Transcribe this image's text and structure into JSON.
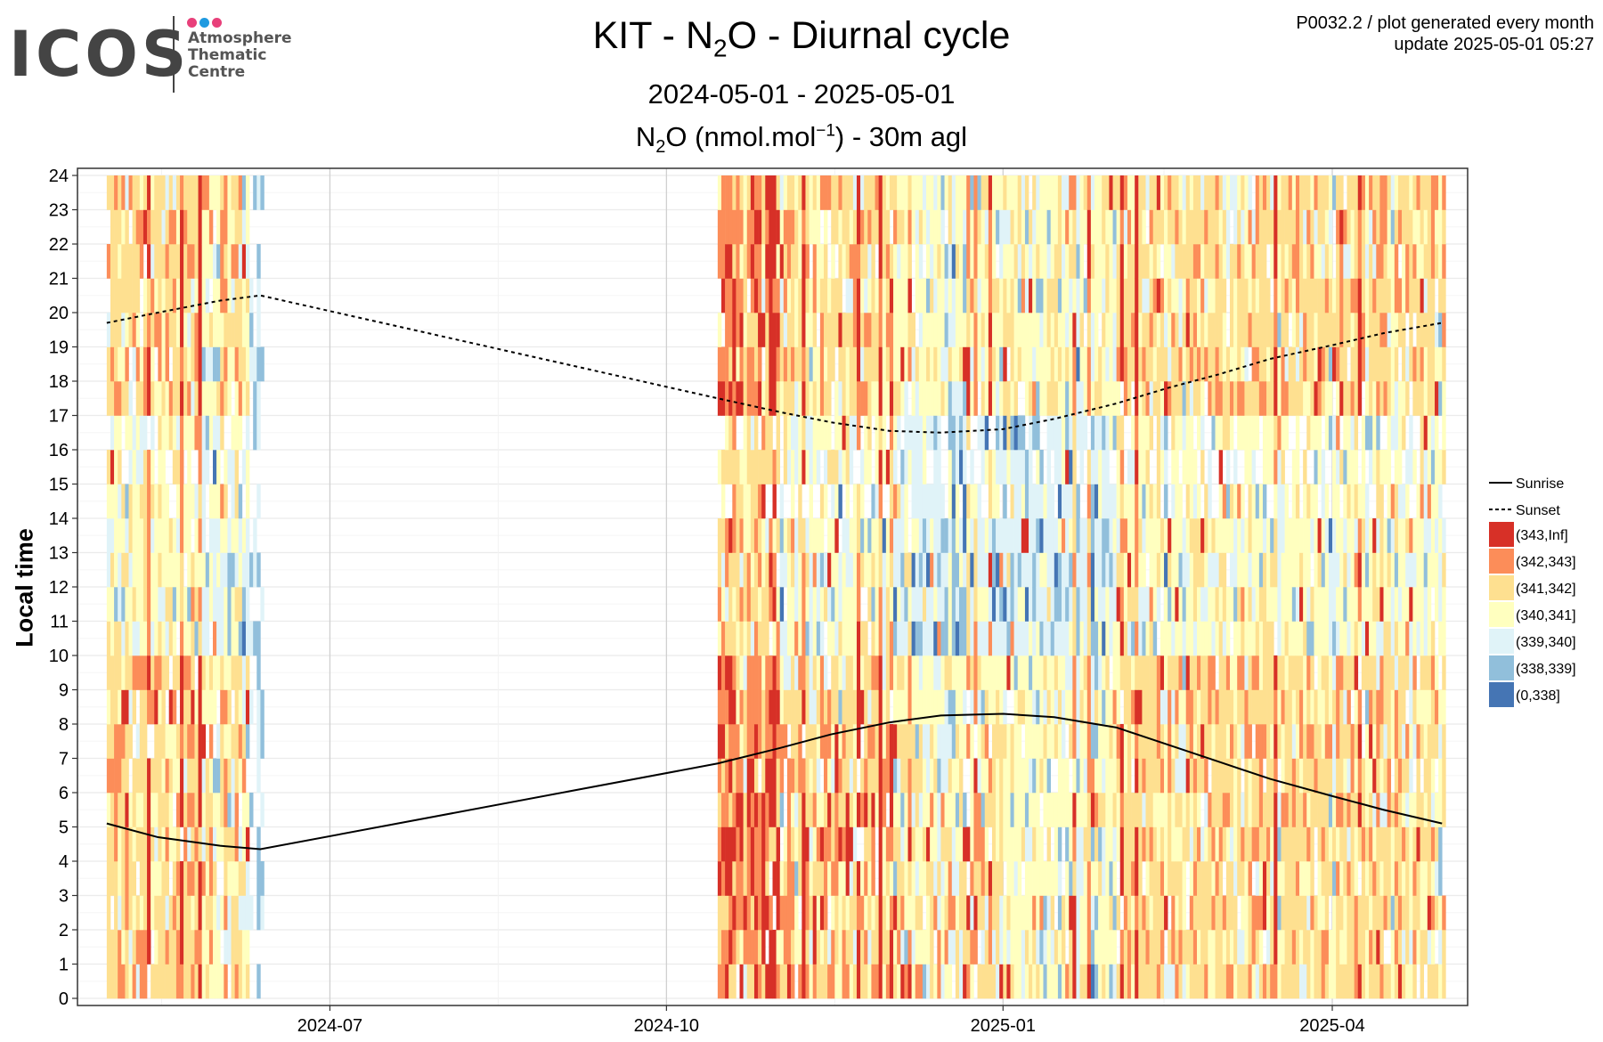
{
  "logo": {
    "wordmark": "ICOS",
    "lines": [
      "Atmosphere",
      "Thematic",
      "Centre"
    ],
    "dot_colors": [
      "#e8407a",
      "#1f9ae0",
      "#e8407a"
    ]
  },
  "header": {
    "title_prefix": "KIT - N",
    "title_sub": "2",
    "title_suffix": "O - Diurnal cycle",
    "date_range": "2024-05-01 - 2025-05-01",
    "var_prefix": "N",
    "var_sub": "2",
    "var_mid": "O (nmol.mol",
    "var_sup": "−1",
    "var_suffix": ") - 30m agl",
    "meta_line1": "P0032.2 / plot generated every month",
    "meta_line2": "update  2025-05-01 05:27"
  },
  "chart_data": {
    "type": "heatmap",
    "ylabel": "Local time",
    "xlabel": "",
    "x_range": [
      "2024-05-01",
      "2025-05-01"
    ],
    "y_range": [
      0,
      24
    ],
    "y_ticks": [
      "0",
      "1",
      "2",
      "3",
      "4",
      "5",
      "6",
      "7",
      "8",
      "9",
      "10",
      "11",
      "12",
      "13",
      "14",
      "15",
      "16",
      "17",
      "18",
      "19",
      "20",
      "21",
      "22",
      "23",
      "24"
    ],
    "x_ticks": [
      {
        "date": "2024-07-01",
        "label": "2024-07"
      },
      {
        "date": "2024-10-01",
        "label": "2024-10"
      },
      {
        "date": "2025-01-01",
        "label": "2025-01"
      },
      {
        "date": "2025-04-01",
        "label": "2025-04"
      }
    ],
    "grid": true,
    "legend_position": "right",
    "data_periods": [
      {
        "start": "2024-05-01",
        "end": "2024-06-08",
        "label": "dense"
      },
      {
        "start": "2024-06-09",
        "end": "2024-06-12",
        "label": "sparse"
      },
      {
        "start": "2024-10-15",
        "end": "2025-05-01",
        "label": "dense"
      }
    ],
    "bins": [
      {
        "label": "(343,Inf]",
        "color": "#d73027"
      },
      {
        "label": "(342,343]",
        "color": "#fc8d59"
      },
      {
        "label": "(341,342]",
        "color": "#fee090"
      },
      {
        "label": "(340,341]",
        "color": "#ffffbf"
      },
      {
        "label": "(339,340]",
        "color": "#e0f3f8"
      },
      {
        "label": "(338,339]",
        "color": "#91bfdb"
      },
      {
        "label": "(0,338]",
        "color": "#4575b4"
      }
    ],
    "lines": [
      {
        "name": "Sunrise",
        "style": "solid",
        "points": [
          [
            "2024-05-01",
            5.1
          ],
          [
            "2024-05-15",
            4.7
          ],
          [
            "2024-06-01",
            4.45
          ],
          [
            "2024-06-12",
            4.35
          ],
          [
            "2024-10-15",
            6.85
          ],
          [
            "2024-11-01",
            7.3
          ],
          [
            "2024-11-15",
            7.7
          ],
          [
            "2024-12-01",
            8.05
          ],
          [
            "2024-12-15",
            8.25
          ],
          [
            "2025-01-01",
            8.3
          ],
          [
            "2025-01-15",
            8.2
          ],
          [
            "2025-02-01",
            7.9
          ],
          [
            "2025-02-15",
            7.4
          ],
          [
            "2025-03-01",
            6.9
          ],
          [
            "2025-03-15",
            6.4
          ],
          [
            "2025-04-01",
            5.9
          ],
          [
            "2025-04-15",
            5.5
          ],
          [
            "2025-05-01",
            5.1
          ]
        ]
      },
      {
        "name": "Sunset",
        "style": "dashed",
        "points": [
          [
            "2024-05-01",
            19.7
          ],
          [
            "2024-05-15",
            20.0
          ],
          [
            "2024-06-01",
            20.35
          ],
          [
            "2024-06-12",
            20.5
          ],
          [
            "2024-10-15",
            17.5
          ],
          [
            "2024-11-01",
            17.1
          ],
          [
            "2024-11-15",
            16.8
          ],
          [
            "2024-12-01",
            16.55
          ],
          [
            "2024-12-15",
            16.5
          ],
          [
            "2025-01-01",
            16.6
          ],
          [
            "2025-01-15",
            16.9
          ],
          [
            "2025-02-01",
            17.35
          ],
          [
            "2025-02-15",
            17.8
          ],
          [
            "2025-03-01",
            18.2
          ],
          [
            "2025-03-15",
            18.65
          ],
          [
            "2025-04-01",
            19.05
          ],
          [
            "2025-04-15",
            19.4
          ],
          [
            "2025-05-01",
            19.7
          ]
        ]
      }
    ]
  }
}
